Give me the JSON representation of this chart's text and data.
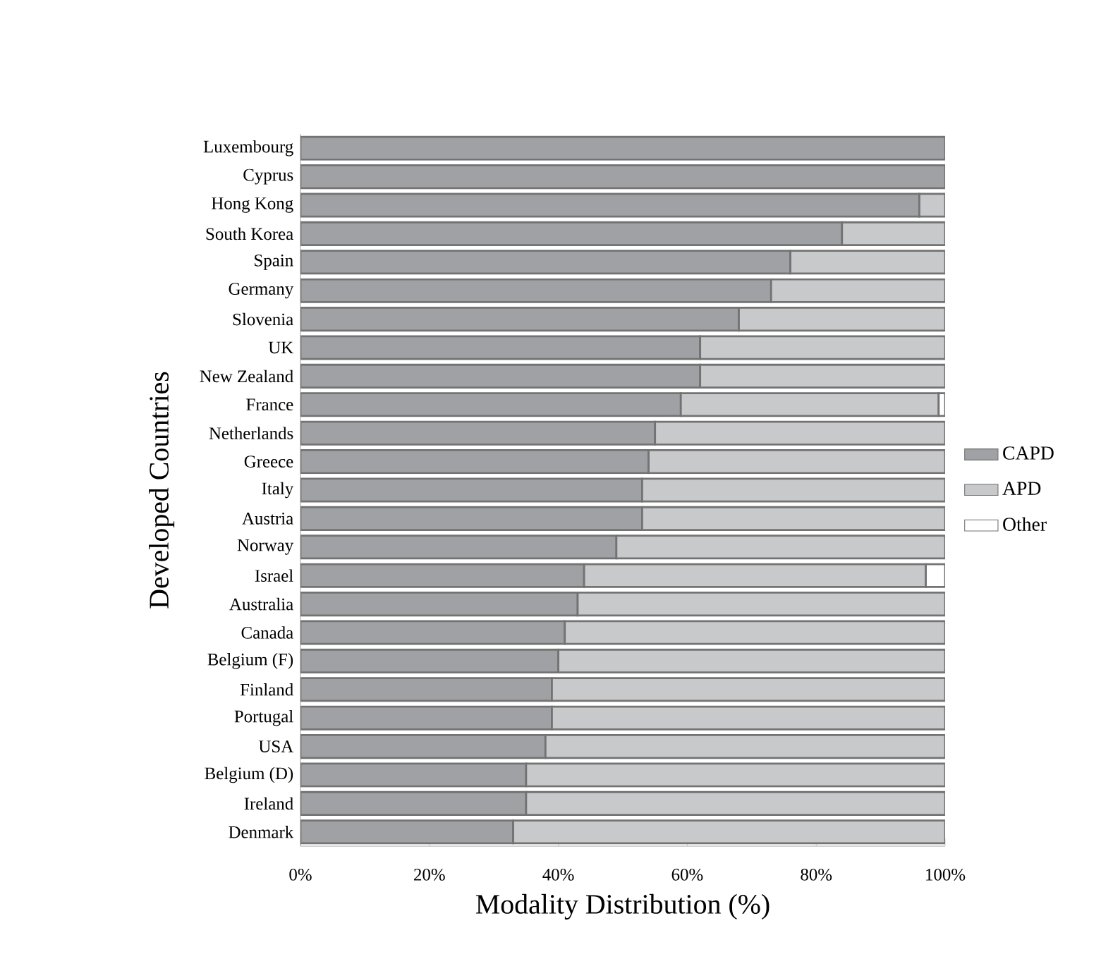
{
  "chart_data": {
    "type": "bar",
    "orientation": "horizontal",
    "stacked": true,
    "xlabel": "Modality Distribution (%)",
    "ylabel": "Developed Countries",
    "categories": [
      "Luxembourg",
      "Cyprus",
      "Hong Kong",
      "South Korea",
      "Spain",
      "Germany",
      "Slovenia",
      "UK",
      "New Zealand",
      "France",
      "Netherlands",
      "Greece",
      "Italy",
      "Austria",
      "Norway",
      "Israel",
      "Australia",
      "Canada",
      "Belgium (F)",
      "Finland",
      "Portugal",
      "USA",
      "Belgium (D)",
      "Ireland",
      "Denmark"
    ],
    "series": [
      {
        "name": "CAPD",
        "color": "#a0a1a5",
        "values": [
          100,
          100,
          96,
          84,
          76,
          73,
          68,
          62,
          62,
          59,
          55,
          54,
          53,
          53,
          49,
          44,
          43,
          41,
          40,
          39,
          39,
          38,
          35,
          35,
          33
        ]
      },
      {
        "name": "APD",
        "color": "#c8c9cb",
        "values": [
          null,
          null,
          4,
          16,
          24,
          27,
          32,
          38,
          38,
          40,
          45,
          46,
          47,
          47,
          51,
          53,
          57,
          59,
          60,
          61,
          61,
          62,
          65,
          65,
          67
        ]
      },
      {
        "name": "Other",
        "color": "#ffffff",
        "values": [
          null,
          null,
          null,
          null,
          null,
          null,
          null,
          null,
          null,
          1,
          null,
          null,
          null,
          null,
          null,
          3,
          null,
          null,
          null,
          null,
          null,
          null,
          null,
          null,
          null
        ]
      }
    ],
    "xlim": [
      0,
      100
    ],
    "xticks": [
      {
        "value": 0,
        "label": "0%"
      },
      {
        "value": 20,
        "label": "20%"
      },
      {
        "value": 40,
        "label": "40%"
      },
      {
        "value": 60,
        "label": "60%"
      },
      {
        "value": 80,
        "label": "80%"
      },
      {
        "value": 100,
        "label": "100%"
      }
    ],
    "legend": "right",
    "grid": false
  }
}
